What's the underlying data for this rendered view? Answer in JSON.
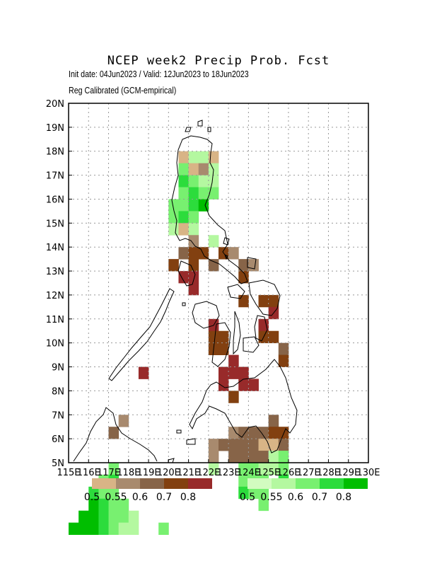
{
  "title": "NCEP week2 Precip Prob. Fcst",
  "subtitle_1": "Init date: 04Jun2023 / Valid: 12Jun2023 to 18Jun2023",
  "subtitle_2": "Reg Calibrated (GCM-empirical)",
  "x_ticks": [
    "115E",
    "116E",
    "117E",
    "118E",
    "119E",
    "120E",
    "121E",
    "122E",
    "123E",
    "124E",
    "125E",
    "126E",
    "127E",
    "128E",
    "129E",
    "130E"
  ],
  "y_ticks": [
    "5N",
    "6N",
    "7N",
    "8N",
    "9N",
    "10N",
    "11N",
    "12N",
    "13N",
    "14N",
    "15N",
    "16N",
    "17N",
    "18N",
    "19N",
    "20N"
  ],
  "legend_dry": {
    "labels": [
      "0.5",
      "0.55",
      "0.6",
      "0.7",
      "0.8"
    ],
    "colors": [
      "#d8b486",
      "#a88a6e",
      "#876448",
      "#824010",
      "#982a2a"
    ]
  },
  "legend_wet": {
    "labels": [
      "0.5",
      "0.55",
      "0.6",
      "0.7",
      "0.8"
    ],
    "colors": [
      "#d2fcc0",
      "#b4f8a0",
      "#78f070",
      "#2cdc3c",
      "#00be00"
    ]
  },
  "chart_data": {
    "type": "heatmap",
    "grid_cell_degrees": 0.5,
    "lon_range": [
      115,
      130
    ],
    "lat_range": [
      5,
      20
    ],
    "cell_format": "[lon_west, lat_south, category]",
    "categories": {
      "d1": "below-normal prob 0.5",
      "d2": "below-normal prob 0.55",
      "d3": "below-normal prob 0.6",
      "d4": "below-normal prob 0.7",
      "d5": "below-normal prob 0.8",
      "w1": "above-normal prob 0.5",
      "w2": "above-normal prob 0.55",
      "w3": "above-normal prob 0.6",
      "w4": "above-normal prob 0.7",
      "w5": "above-normal prob 0.8"
    },
    "cells": [
      [
        120.5,
        17.5,
        "d1"
      ],
      [
        121.0,
        17.5,
        "w2"
      ],
      [
        121.5,
        17.5,
        "w2"
      ],
      [
        122.0,
        17.5,
        "d1"
      ],
      [
        120.5,
        17.0,
        "w3"
      ],
      [
        121.0,
        17.0,
        "d1"
      ],
      [
        121.5,
        17.0,
        "d2"
      ],
      [
        122.0,
        17.0,
        "w2"
      ],
      [
        120.5,
        16.5,
        "w4"
      ],
      [
        121.0,
        16.5,
        "w3"
      ],
      [
        121.5,
        16.5,
        "w2"
      ],
      [
        122.0,
        16.5,
        "w2"
      ],
      [
        120.5,
        16.0,
        "w3"
      ],
      [
        121.0,
        16.0,
        "w4"
      ],
      [
        121.5,
        16.0,
        "w3"
      ],
      [
        122.0,
        16.0,
        "w3"
      ],
      [
        120.0,
        15.5,
        "w3"
      ],
      [
        120.5,
        15.5,
        "w3"
      ],
      [
        121.0,
        15.5,
        "w4"
      ],
      [
        121.5,
        15.5,
        "w5"
      ],
      [
        120.0,
        15.0,
        "w3"
      ],
      [
        120.5,
        15.0,
        "w4"
      ],
      [
        121.0,
        15.0,
        "w3"
      ],
      [
        120.0,
        14.5,
        "w2"
      ],
      [
        120.5,
        14.5,
        "d1"
      ],
      [
        121.0,
        14.5,
        "w2"
      ],
      [
        121.0,
        14.0,
        "d2"
      ],
      [
        122.0,
        14.0,
        "w2"
      ],
      [
        120.5,
        13.5,
        "d3"
      ],
      [
        121.0,
        13.5,
        "d4"
      ],
      [
        121.5,
        13.5,
        "d4"
      ],
      [
        122.5,
        13.5,
        "d4"
      ],
      [
        123.0,
        13.5,
        "d2"
      ],
      [
        120.0,
        13.0,
        "d4"
      ],
      [
        121.0,
        13.0,
        "d4"
      ],
      [
        122.0,
        13.0,
        "d3"
      ],
      [
        123.5,
        13.0,
        "d3"
      ],
      [
        124.0,
        13.0,
        "d2"
      ],
      [
        120.5,
        12.5,
        "d5"
      ],
      [
        121.0,
        12.5,
        "d5"
      ],
      [
        123.5,
        12.5,
        "d4"
      ],
      [
        121.0,
        12.0,
        "d5"
      ],
      [
        123.5,
        11.5,
        "d4"
      ],
      [
        124.5,
        11.5,
        "d4"
      ],
      [
        125.0,
        11.5,
        "d4"
      ],
      [
        125.0,
        11.0,
        "d5"
      ],
      [
        122.0,
        10.5,
        "d5"
      ],
      [
        124.5,
        10.5,
        "d5"
      ],
      [
        122.0,
        10.0,
        "d4"
      ],
      [
        122.5,
        10.0,
        "d4"
      ],
      [
        124.5,
        10.0,
        "d4"
      ],
      [
        125.0,
        10.0,
        "d4"
      ],
      [
        122.0,
        9.5,
        "d4"
      ],
      [
        122.5,
        9.5,
        "d4"
      ],
      [
        125.5,
        9.5,
        "d3"
      ],
      [
        123.0,
        9.0,
        "d5"
      ],
      [
        125.5,
        9.0,
        "d4"
      ],
      [
        122.5,
        8.5,
        "d5"
      ],
      [
        123.0,
        8.5,
        "d5"
      ],
      [
        123.5,
        8.5,
        "d5"
      ],
      [
        118.5,
        8.5,
        "d5"
      ],
      [
        122.5,
        8.0,
        "d5"
      ],
      [
        123.5,
        8.0,
        "d5"
      ],
      [
        124.0,
        8.0,
        "d5"
      ],
      [
        123.0,
        7.5,
        "d4"
      ],
      [
        117.5,
        6.5,
        "d2"
      ],
      [
        125.0,
        6.5,
        "d3"
      ],
      [
        117.0,
        6.0,
        "d3"
      ],
      [
        123.0,
        6.0,
        "d2"
      ],
      [
        123.5,
        6.0,
        "d3"
      ],
      [
        124.0,
        6.0,
        "d3"
      ],
      [
        124.5,
        6.0,
        "d3"
      ],
      [
        125.0,
        6.0,
        "d4"
      ],
      [
        125.5,
        6.0,
        "d4"
      ],
      [
        122.0,
        5.5,
        "d2"
      ],
      [
        122.5,
        5.5,
        "d3"
      ],
      [
        123.0,
        5.5,
        "d3"
      ],
      [
        123.5,
        5.5,
        "d3"
      ],
      [
        124.0,
        5.5,
        "d3"
      ],
      [
        124.5,
        5.5,
        "d1"
      ],
      [
        125.0,
        5.5,
        "d1"
      ],
      [
        125.5,
        5.5,
        "d3"
      ],
      [
        122.0,
        5.0,
        "d2"
      ],
      [
        123.0,
        5.0,
        "d3"
      ],
      [
        123.5,
        5.0,
        "d3"
      ],
      [
        124.0,
        5.0,
        "d3"
      ],
      [
        124.5,
        5.0,
        "d3"
      ],
      [
        125.0,
        5.0,
        "w2"
      ],
      [
        125.5,
        5.0,
        "w3"
      ],
      [
        122.0,
        4.5,
        "w2"
      ],
      [
        123.5,
        4.5,
        "w3"
      ],
      [
        124.0,
        4.5,
        "w3"
      ],
      [
        124.5,
        4.5,
        "w2"
      ],
      [
        125.0,
        4.5,
        "w2"
      ],
      [
        125.5,
        4.5,
        "w3"
      ],
      [
        117.0,
        4.5,
        "w3"
      ],
      [
        116.5,
        4.0,
        "w3"
      ],
      [
        117.0,
        4.0,
        "w4"
      ],
      [
        123.5,
        4.0,
        "w3"
      ],
      [
        124.0,
        4.0,
        "w3"
      ],
      [
        124.5,
        4.0,
        "w3"
      ],
      [
        125.5,
        4.0,
        "w4"
      ],
      [
        116.0,
        3.5,
        "w4"
      ],
      [
        116.5,
        3.5,
        "w3"
      ],
      [
        117.0,
        3.5,
        "w3"
      ],
      [
        123.5,
        3.5,
        "w4"
      ],
      [
        124.0,
        3.5,
        "w3"
      ],
      [
        124.5,
        3.5,
        "w3"
      ],
      [
        116.0,
        3.0,
        "w5"
      ],
      [
        116.5,
        3.0,
        "w4"
      ],
      [
        117.0,
        3.0,
        "w3"
      ],
      [
        117.5,
        3.0,
        "w3"
      ],
      [
        124.5,
        3.0,
        "w3"
      ],
      [
        115.5,
        2.5,
        "w5"
      ],
      [
        116.0,
        2.5,
        "w5"
      ],
      [
        116.5,
        2.5,
        "w4"
      ],
      [
        117.0,
        2.5,
        "w3"
      ],
      [
        117.5,
        2.5,
        "w3"
      ],
      [
        118.0,
        2.5,
        "w2"
      ],
      [
        115.0,
        2.0,
        "w5"
      ],
      [
        115.5,
        2.0,
        "w5"
      ],
      [
        116.0,
        2.0,
        "w5"
      ],
      [
        116.5,
        2.0,
        "w4"
      ],
      [
        117.0,
        2.0,
        "w3"
      ],
      [
        117.5,
        2.0,
        "w2"
      ],
      [
        118.0,
        2.0,
        "w2"
      ],
      [
        119.5,
        2.0,
        "w3"
      ]
    ]
  }
}
